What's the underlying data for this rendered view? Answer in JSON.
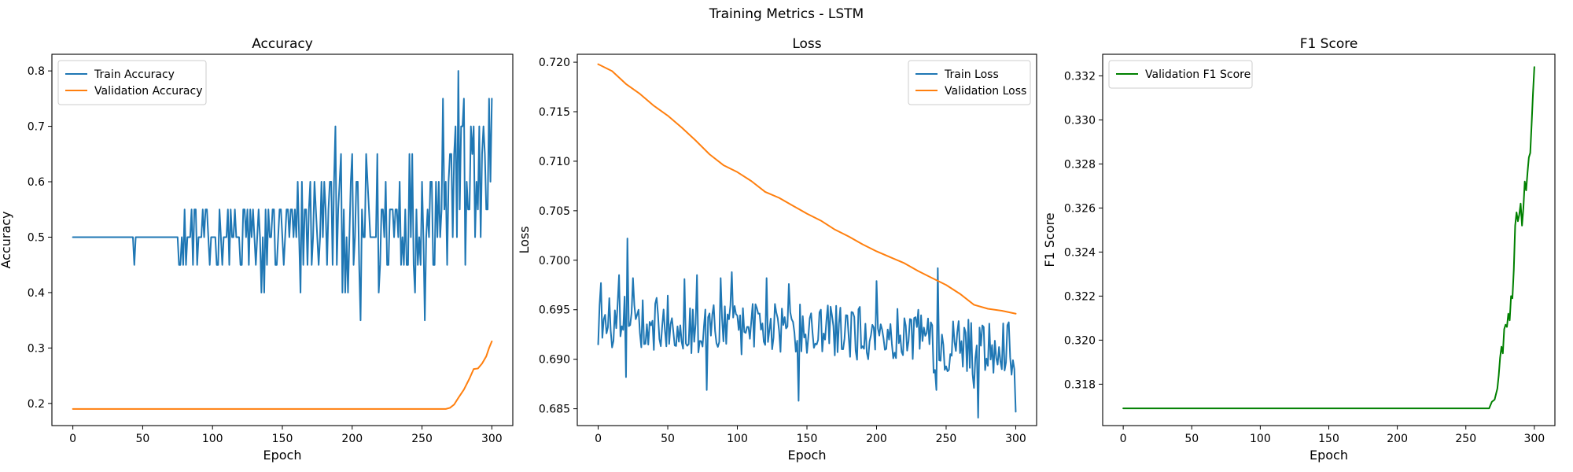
{
  "figure": {
    "title": "Training Metrics - LSTM"
  },
  "chart_data": [
    {
      "id": "accuracy",
      "type": "line",
      "title": "Accuracy",
      "xlabel": "Epoch",
      "ylabel": "Accuracy",
      "xlim": [
        -15,
        315
      ],
      "ylim": [
        0.16,
        0.83
      ],
      "xticks": [
        0,
        50,
        100,
        150,
        200,
        250,
        300
      ],
      "yticks": [
        0.2,
        0.3,
        0.4,
        0.5,
        0.6,
        0.7,
        0.8
      ],
      "ytick_decimals": 1,
      "legend": "upper-left",
      "grid": false,
      "series": [
        {
          "name": "Train Accuracy",
          "color": "#1f77b4",
          "kind": "noisy",
          "segments": [
            [
              0,
              43,
              0.5,
              0
            ],
            [
              44,
              44,
              0.45,
              0
            ],
            [
              45,
              75,
              0.5,
              0
            ],
            [
              76,
              90,
              0.5,
              0.05
            ],
            [
              91,
              120,
              0.5,
              0.05
            ],
            [
              121,
              160,
              0.5,
              0.08
            ],
            [
              161,
              190,
              0.52,
              0.1
            ],
            [
              191,
              230,
              0.52,
              0.12
            ],
            [
              231,
              260,
              0.55,
              0.12
            ],
            [
              261,
              300,
              0.6,
              0.12
            ]
          ],
          "points": [
            [
              1,
              0.5
            ],
            [
              44,
              0.45
            ],
            [
              79,
              0.45
            ],
            [
              87,
              0.55
            ],
            [
              98,
              0.45
            ],
            [
              120,
              0.45
            ],
            [
              135,
              0.4
            ],
            [
              137,
              0.4
            ],
            [
              163,
              0.4
            ],
            [
              185,
              0.6
            ],
            [
              188,
              0.7
            ],
            [
              197,
              0.4
            ],
            [
              206,
              0.65
            ],
            [
              206,
              0.35
            ],
            [
              219,
              0.4
            ],
            [
              241,
              0.65
            ],
            [
              245,
              0.4
            ],
            [
              252,
              0.35
            ],
            [
              262,
              0.6
            ],
            [
              265,
              0.75
            ],
            [
              268,
              0.45
            ],
            [
              276,
              0.8
            ],
            [
              280,
              0.75
            ],
            [
              281,
              0.45
            ],
            [
              285,
              0.7
            ],
            [
              288,
              0.5
            ],
            [
              293,
              0.65
            ],
            [
              296,
              0.55
            ],
            [
              298,
              0.75
            ],
            [
              299,
              0.6
            ],
            [
              300,
              0.75
            ]
          ]
        },
        {
          "name": "Validation Accuracy",
          "color": "#ff7f0e",
          "kind": "curve",
          "points": [
            [
              0,
              0.19
            ],
            [
              267,
              0.19
            ],
            [
              270,
              0.192
            ],
            [
              273,
              0.198
            ],
            [
              276,
              0.21
            ],
            [
              280,
              0.225
            ],
            [
              284,
              0.245
            ],
            [
              287,
              0.262
            ],
            [
              290,
              0.263
            ],
            [
              293,
              0.272
            ],
            [
              296,
              0.285
            ],
            [
              298,
              0.3
            ],
            [
              300,
              0.312
            ]
          ]
        }
      ]
    },
    {
      "id": "loss",
      "type": "line",
      "title": "Loss",
      "xlabel": "Epoch",
      "ylabel": "Loss",
      "xlim": [
        -15,
        315
      ],
      "ylim": [
        0.6833,
        0.7208
      ],
      "xticks": [
        0,
        50,
        100,
        150,
        200,
        250,
        300
      ],
      "yticks": [
        0.685,
        0.69,
        0.695,
        0.7,
        0.705,
        0.71,
        0.715,
        0.72
      ],
      "ytick_decimals": 3,
      "legend": "upper-right",
      "grid": false,
      "series": [
        {
          "name": "Train Loss",
          "color": "#1f77b4",
          "kind": "noisy",
          "segments": [
            [
              0,
              60,
              0.6937,
              0.0028
            ],
            [
              61,
              120,
              0.6932,
              0.0028
            ],
            [
              121,
              180,
              0.6929,
              0.0027
            ],
            [
              181,
              240,
              0.6926,
              0.0027
            ],
            [
              241,
              300,
              0.6912,
              0.0028
            ]
          ],
          "points": [
            [
              0,
              0.6915
            ],
            [
              2,
              0.6977
            ],
            [
              15,
              0.6985
            ],
            [
              20,
              0.6882
            ],
            [
              21,
              0.7022
            ],
            [
              25,
              0.6982
            ],
            [
              62,
              0.6981
            ],
            [
              71,
              0.6985
            ],
            [
              78,
              0.6869
            ],
            [
              88,
              0.6982
            ],
            [
              96,
              0.6988
            ],
            [
              121,
              0.6982
            ],
            [
              137,
              0.6976
            ],
            [
              144,
              0.6858
            ],
            [
              200,
              0.6979
            ],
            [
              243,
              0.6869
            ],
            [
              244,
              0.6992
            ],
            [
              270,
              0.6871
            ],
            [
              273,
              0.6841
            ],
            [
              281,
              0.6936
            ],
            [
              298,
              0.6899
            ],
            [
              299,
              0.689
            ],
            [
              300,
              0.6847
            ]
          ]
        },
        {
          "name": "Validation Loss",
          "color": "#ff7f0e",
          "kind": "curve",
          "points": [
            [
              0,
              0.7198
            ],
            [
              10,
              0.7191
            ],
            [
              20,
              0.7178
            ],
            [
              30,
              0.7168
            ],
            [
              40,
              0.7156
            ],
            [
              50,
              0.7146
            ],
            [
              60,
              0.7134
            ],
            [
              70,
              0.7121
            ],
            [
              80,
              0.7107
            ],
            [
              90,
              0.7096
            ],
            [
              100,
              0.7089
            ],
            [
              110,
              0.708
            ],
            [
              120,
              0.7069
            ],
            [
              130,
              0.7063
            ],
            [
              140,
              0.7055
            ],
            [
              150,
              0.7047
            ],
            [
              160,
              0.704
            ],
            [
              170,
              0.7031
            ],
            [
              180,
              0.7024
            ],
            [
              190,
              0.7016
            ],
            [
              200,
              0.7009
            ],
            [
              210,
              0.7003
            ],
            [
              220,
              0.6997
            ],
            [
              230,
              0.6989
            ],
            [
              240,
              0.6982
            ],
            [
              250,
              0.6975
            ],
            [
              260,
              0.6966
            ],
            [
              270,
              0.6955
            ],
            [
              280,
              0.6951
            ],
            [
              290,
              0.6949
            ],
            [
              300,
              0.6946
            ]
          ]
        }
      ]
    },
    {
      "id": "f1",
      "type": "line",
      "title": "F1 Score",
      "xlabel": "Epoch",
      "ylabel": "F1 Score",
      "xlim": [
        -15,
        315
      ],
      "ylim": [
        0.31612,
        0.33298
      ],
      "xticks": [
        0,
        50,
        100,
        150,
        200,
        250,
        300
      ],
      "yticks": [
        0.318,
        0.32,
        0.322,
        0.324,
        0.326,
        0.328,
        0.33,
        0.332
      ],
      "ytick_decimals": 3,
      "legend": "upper-left",
      "grid": false,
      "series": [
        {
          "name": "Validation F1 Score",
          "color": "#008000",
          "kind": "curve",
          "points": [
            [
              0,
              0.3169
            ],
            [
              267,
              0.3169
            ],
            [
              269,
              0.3172
            ],
            [
              271,
              0.3173
            ],
            [
              273,
              0.3178
            ],
            [
              274,
              0.3184
            ],
            [
              275,
              0.3192
            ],
            [
              276,
              0.3197
            ],
            [
              277,
              0.3194
            ],
            [
              278,
              0.3205
            ],
            [
              279,
              0.3207
            ],
            [
              280,
              0.3206
            ],
            [
              281,
              0.3212
            ],
            [
              282,
              0.3209
            ],
            [
              283,
              0.322
            ],
            [
              284,
              0.3219
            ],
            [
              285,
              0.3232
            ],
            [
              286,
              0.3252
            ],
            [
              287,
              0.3258
            ],
            [
              288,
              0.3254
            ],
            [
              289,
              0.3257
            ],
            [
              290,
              0.3262
            ],
            [
              291,
              0.3252
            ],
            [
              292,
              0.326
            ],
            [
              293,
              0.3272
            ],
            [
              294,
              0.3268
            ],
            [
              295,
              0.3276
            ],
            [
              296,
              0.3283
            ],
            [
              297,
              0.3285
            ],
            [
              298,
              0.3298
            ],
            [
              299,
              0.3312
            ],
            [
              300,
              0.3324
            ]
          ]
        }
      ]
    }
  ]
}
